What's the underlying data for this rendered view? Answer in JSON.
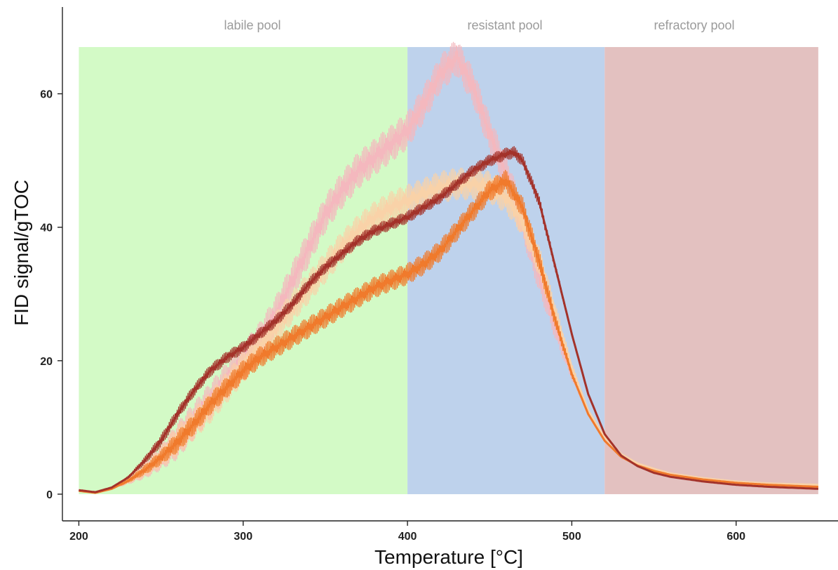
{
  "chart_data": {
    "type": "line",
    "title": "",
    "xlabel": "Temperature [°C]",
    "ylabel": "FID signal/gTOC",
    "xlim": [
      190,
      662
    ],
    "ylim": [
      -4,
      73
    ],
    "x_ticks": [
      200,
      300,
      400,
      500,
      600
    ],
    "y_ticks": [
      0,
      20,
      40,
      60
    ],
    "grid": false,
    "legend": "none",
    "regions": [
      {
        "label": "labile pool",
        "x_start": 200,
        "x_end": 400,
        "y_max": 67,
        "color": "#d3fac6"
      },
      {
        "label": "resistant pool",
        "x_start": 400,
        "x_end": 520,
        "y_max": 67,
        "color": "#bed2ec"
      },
      {
        "label": "refractory pool",
        "x_start": 520,
        "x_end": 650,
        "y_max": 67,
        "color": "#e3c1c0"
      }
    ],
    "series": [
      {
        "color": "#f4b8be",
        "noise": 2.8,
        "x": [
          200,
          210,
          220,
          230,
          240,
          250,
          260,
          270,
          280,
          290,
          300,
          310,
          320,
          330,
          340,
          350,
          360,
          370,
          380,
          390,
          400,
          410,
          420,
          430,
          440,
          450,
          460,
          470,
          480,
          490,
          500,
          510,
          520,
          530,
          540,
          550,
          560,
          580,
          600,
          620,
          650
        ],
        "y": [
          0.6,
          0.3,
          0.9,
          2.0,
          3.5,
          5.5,
          8.0,
          11.0,
          14.0,
          17.0,
          20.0,
          23.0,
          27.0,
          32.0,
          37.0,
          42.0,
          45.5,
          48.5,
          50.5,
          52.5,
          54.5,
          58.5,
          63.0,
          65.5,
          61.0,
          54.0,
          48.0,
          41.0,
          33.0,
          25.0,
          18.0,
          12.0,
          8.0,
          5.8,
          4.5,
          3.7,
          3.0,
          2.3,
          1.8,
          1.5,
          1.2
        ]
      },
      {
        "color": "#f9d2a8",
        "noise": 2.4,
        "x": [
          200,
          210,
          220,
          230,
          240,
          250,
          260,
          270,
          280,
          290,
          300,
          310,
          320,
          330,
          340,
          350,
          360,
          370,
          380,
          390,
          400,
          410,
          420,
          430,
          440,
          450,
          460,
          470,
          480,
          490,
          500,
          510,
          520,
          530,
          540,
          550,
          560,
          580,
          600,
          620,
          650
        ],
        "y": [
          0.6,
          0.3,
          0.9,
          2.0,
          3.5,
          5.5,
          8.0,
          10.5,
          13.0,
          16.0,
          19.0,
          22.0,
          25.0,
          28.0,
          31.0,
          34.0,
          37.0,
          39.5,
          41.5,
          43.0,
          44.0,
          45.0,
          46.0,
          46.5,
          46.5,
          46.0,
          44.5,
          41.0,
          35.0,
          27.0,
          19.0,
          12.5,
          8.5,
          6.0,
          4.6,
          3.8,
          3.1,
          2.4,
          1.9,
          1.6,
          1.4
        ]
      },
      {
        "color": "#f07a2c",
        "noise": 1.6,
        "x": [
          200,
          210,
          220,
          230,
          240,
          250,
          260,
          270,
          280,
          290,
          300,
          310,
          320,
          330,
          340,
          350,
          360,
          370,
          380,
          390,
          400,
          410,
          420,
          430,
          440,
          450,
          460,
          470,
          480,
          490,
          500,
          510,
          520,
          530,
          540,
          550,
          560,
          580,
          600,
          620,
          650
        ],
        "y": [
          0.5,
          0.2,
          0.8,
          2.0,
          3.6,
          5.5,
          7.8,
          10.5,
          13.5,
          16.0,
          18.5,
          20.5,
          22.0,
          23.5,
          25.0,
          26.5,
          28.0,
          29.5,
          31.0,
          32.0,
          33.0,
          34.5,
          36.5,
          39.5,
          42.5,
          45.5,
          47.0,
          43.0,
          35.0,
          26.0,
          18.0,
          12.0,
          8.0,
          5.6,
          4.3,
          3.5,
          2.9,
          2.2,
          1.7,
          1.4,
          1.1
        ]
      },
      {
        "color": "#a3322a",
        "noise": 0.9,
        "x": [
          200,
          210,
          220,
          230,
          240,
          250,
          260,
          270,
          280,
          290,
          300,
          310,
          320,
          330,
          340,
          350,
          360,
          370,
          380,
          390,
          400,
          410,
          420,
          430,
          440,
          450,
          460,
          465,
          470,
          480,
          490,
          500,
          510,
          520,
          530,
          540,
          550,
          560,
          580,
          600,
          620,
          650
        ],
        "y": [
          0.6,
          0.3,
          1.0,
          2.5,
          5.0,
          8.0,
          12.0,
          15.5,
          18.5,
          20.5,
          22.0,
          24.0,
          26.0,
          28.5,
          31.5,
          34.0,
          36.0,
          38.0,
          39.5,
          40.5,
          41.5,
          43.0,
          44.5,
          46.5,
          48.5,
          50.0,
          51.0,
          51.2,
          50.0,
          44.0,
          34.0,
          24.0,
          15.0,
          9.0,
          5.8,
          4.2,
          3.2,
          2.6,
          1.9,
          1.4,
          1.1,
          0.8
        ]
      }
    ]
  }
}
